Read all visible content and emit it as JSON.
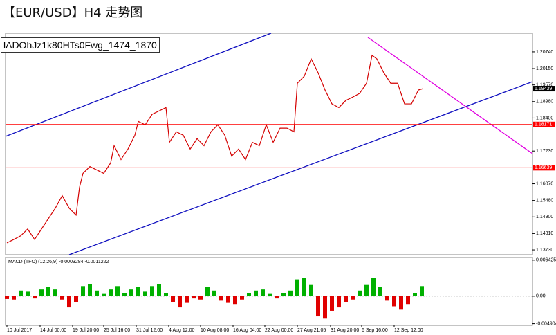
{
  "title": "【EUR/USD】H4 走势图",
  "image_label": "lADOhJz1k80HTs0Fwg_1474_1870",
  "chart_data": [
    {
      "type": "line",
      "x": [
        2,
        12,
        22,
        32,
        42,
        52,
        62,
        72,
        82,
        92,
        102,
        107,
        112,
        122,
        132,
        142,
        152,
        157,
        167,
        177,
        187,
        192,
        202,
        212,
        222,
        232,
        237,
        247,
        257,
        267,
        277,
        287,
        297,
        307,
        317,
        327,
        337,
        347,
        357,
        367,
        377,
        387,
        397,
        407,
        417,
        422,
        432,
        442,
        452,
        462,
        472,
        482,
        492,
        502,
        512,
        522,
        530,
        537,
        547,
        557,
        567,
        577,
        587,
        597,
        604
      ],
      "series": [
        {
          "color": "#d40000",
          "values": [
            1.1398,
            1.141,
            1.1423,
            1.1447,
            1.141,
            1.1447,
            1.1484,
            1.1521,
            1.1565,
            1.1521,
            1.1496,
            1.1595,
            1.1644,
            1.1668,
            1.1656,
            1.1644,
            1.1681,
            1.1742,
            1.1693,
            1.173,
            1.1779,
            1.1828,
            1.1816,
            1.1853,
            1.1865,
            1.1877,
            1.1754,
            1.1791,
            1.1779,
            1.173,
            1.1767,
            1.1742,
            1.1791,
            1.1816,
            1.1779,
            1.1705,
            1.173,
            1.1693,
            1.1754,
            1.1742,
            1.1816,
            1.1754,
            1.1804,
            1.1804,
            1.1791,
            1.1963,
            1.1988,
            1.2049,
            1.2,
            1.1939,
            1.189,
            1.1877,
            1.1902,
            1.1914,
            1.1927,
            1.1963,
            1.2062,
            1.2049,
            1.2,
            1.1963,
            1.1963,
            1.189,
            1.189,
            1.1939,
            1.1944
          ]
        }
      ],
      "xlim": [
        0,
        762
      ],
      "ylim": [
        1.1356,
        1.214
      ],
      "yticks": [
        {
          "value": 1.2074,
          "label": "1.20740"
        },
        {
          "value": 1.2015,
          "label": "1.20150"
        },
        {
          "value": 1.1957,
          "label": "1.19570"
        },
        {
          "value": 1.1898,
          "label": "1.18980"
        },
        {
          "value": 1.184,
          "label": "1.18400"
        },
        {
          "value": 1.1723,
          "label": "1.17230"
        },
        {
          "value": 1.1607,
          "label": "1.16070"
        },
        {
          "value": 1.1548,
          "label": "1.15480"
        },
        {
          "value": 1.149,
          "label": "1.14900"
        },
        {
          "value": 1.1431,
          "label": "1.14310"
        },
        {
          "value": 1.1373,
          "label": "1.13730"
        }
      ],
      "levels": [
        1.18171,
        1.16639
      ],
      "level_color": "#ff0000",
      "last_price": 1.19439
    },
    {
      "type": "bar",
      "title": "MACD (TFO) (12,26,9) -0.0003284 -0.0011222",
      "x": [
        2,
        12,
        22,
        32,
        42,
        52,
        62,
        72,
        82,
        92,
        102,
        112,
        122,
        132,
        142,
        152,
        162,
        172,
        182,
        192,
        202,
        212,
        222,
        232,
        242,
        252,
        262,
        272,
        282,
        292,
        302,
        312,
        322,
        332,
        342,
        352,
        362,
        372,
        382,
        392,
        402,
        412,
        422,
        432,
        442,
        452,
        462,
        472,
        482,
        492,
        502,
        512,
        522,
        532,
        542,
        552,
        562,
        572,
        582,
        592,
        602
      ],
      "values": [
        -0.0005,
        -0.0006,
        0.001,
        0.0008,
        -0.0004,
        0.0012,
        0.0016,
        0.0012,
        -0.0006,
        -0.002,
        -0.001,
        0.0018,
        0.0022,
        0.001,
        0.0004,
        0.0012,
        0.0018,
        0.0006,
        0.0012,
        0.0016,
        0.0008,
        0.0018,
        0.0022,
        0.0006,
        -0.001,
        -0.002,
        -0.0012,
        -0.0004,
        -0.0006,
        0.0016,
        0.001,
        -0.0008,
        -0.0012,
        -0.0014,
        -0.0006,
        0.0006,
        0.001,
        0.0012,
        0.0004,
        -0.0004,
        0.0006,
        0.001,
        0.003,
        0.0032,
        0.002,
        -0.0036,
        -0.004,
        -0.0026,
        -0.002,
        -0.001,
        -0.0006,
        0.001,
        0.002,
        0.0032,
        0.0016,
        -0.0008,
        -0.0018,
        -0.0024,
        -0.0014,
        0.0006,
        0.0018
      ],
      "positive_color": "#00b000",
      "negative_color": "#e00000",
      "xlim": [
        0,
        762
      ],
      "ylim": [
        -0.0052,
        0.0069
      ],
      "yticks": [
        0.006425,
        {
          "value": 0,
          "label": "0.00"
        },
        -0.004904
      ],
      "xticks": [
        {
          "value": 2,
          "label": "10 Jul 2017"
        },
        {
          "value": 50,
          "label": "14 Jul 00:00"
        },
        {
          "value": 97,
          "label": "19 Jul 20:00"
        },
        {
          "value": 142,
          "label": "25 Jul 16:00"
        },
        {
          "value": 189,
          "label": "31 Jul 12:00"
        },
        {
          "value": 236,
          "label": "4 Aug 12:00"
        },
        {
          "value": 282,
          "label": "10 Aug 08:00"
        },
        {
          "value": 329,
          "label": "16 Aug 04:00"
        },
        {
          "value": 375,
          "label": "22 Aug 00:00"
        },
        {
          "value": 422,
          "label": "27 Aug 21:05"
        },
        {
          "value": 470,
          "label": "31 Aug 20:00"
        },
        {
          "value": 515,
          "label": "6 Sep 16:00"
        },
        {
          "value": 562,
          "label": "12 Sep 12:00"
        }
      ]
    }
  ]
}
